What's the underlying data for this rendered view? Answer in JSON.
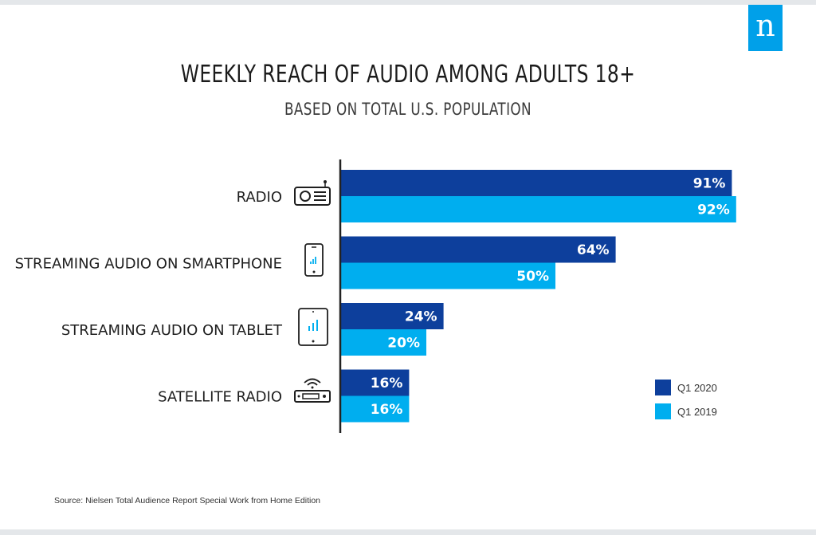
{
  "logo": {
    "letter": "n"
  },
  "source": "Source: Nielsen Total Audience Report Special Work from Home Edition",
  "colors": {
    "q1_2020": "#0d3f9c",
    "q1_2019": "#00aeef"
  },
  "icons": [
    "radio-icon",
    "smartphone-icon",
    "tablet-icon",
    "satellite-radio-icon"
  ],
  "chart_data": {
    "type": "bar",
    "orientation": "horizontal",
    "title": "WEEKLY REACH OF AUDIO AMONG ADULTS 18+",
    "subtitle": "BASED ON TOTAL U.S. POPULATION",
    "categories": [
      "RADIO",
      "STREAMING AUDIO ON SMARTPHONE",
      "STREAMING AUDIO ON TABLET",
      "SATELLITE RADIO"
    ],
    "series": [
      {
        "name": "Q1 2020",
        "values": [
          91,
          64,
          24,
          16
        ],
        "labels": [
          "91%",
          "64%",
          "24%",
          "16%"
        ],
        "color": "#0d3f9c"
      },
      {
        "name": "Q1 2019",
        "values": [
          92,
          50,
          20,
          16
        ],
        "labels": [
          "92%",
          "50%",
          "20%",
          "16%"
        ],
        "color": "#00aeef"
      }
    ],
    "xlim": [
      0,
      100
    ],
    "grid": false,
    "legend_position": "bottom-right"
  }
}
